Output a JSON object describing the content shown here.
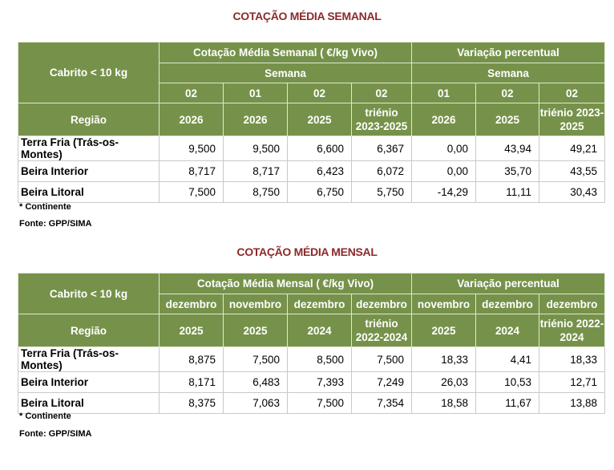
{
  "weekly": {
    "title": "COTAÇÃO MÉDIA SEMANAL",
    "corner": "Cabrito < 10 kg",
    "region_label": "Região",
    "group1": "Cotação Média Semanal ( €/kg Vivo)",
    "group2": "Variação percentual",
    "sub1": "Semana",
    "sub2": "Semana",
    "periods": [
      "02",
      "01",
      "02",
      "02",
      "01",
      "02",
      "02"
    ],
    "years": [
      "2026",
      "2026",
      "2025",
      "triénio 2023-2025",
      "2026",
      "2025",
      "triénio 2023-2025"
    ],
    "rows": [
      {
        "region": "Terra Fria (Trás-os-Montes)",
        "values": [
          "9,500",
          "9,500",
          "6,600",
          "6,367",
          "0,00",
          "43,94",
          "49,21"
        ]
      },
      {
        "region": "Beira Interior",
        "values": [
          "8,717",
          "8,717",
          "6,423",
          "6,072",
          "0,00",
          "35,70",
          "43,55"
        ]
      },
      {
        "region": "Beira Litoral",
        "values": [
          "7,500",
          "8,750",
          "6,750",
          "5,750",
          "-14,29",
          "11,11",
          "30,43"
        ]
      }
    ],
    "note": "* Continente",
    "source": "Fonte: GPP/SIMA"
  },
  "monthly": {
    "title": "COTAÇÃO MÉDIA MENSAL",
    "corner": "Cabrito < 10 kg",
    "region_label": "Região",
    "group1": "Cotação Média Mensal ( €/kg Vivo)",
    "group2": "Variação percentual",
    "periods": [
      "dezembro",
      "novembro",
      "dezembro",
      "dezembro",
      "novembro",
      "dezembro",
      "dezembro"
    ],
    "years": [
      "2025",
      "2025",
      "2024",
      "triénio 2022-2024",
      "2025",
      "2024",
      "triénio 2022-2024"
    ],
    "rows": [
      {
        "region": "Terra Fria (Trás-os-Montes)",
        "values": [
          "8,875",
          "7,500",
          "8,500",
          "7,500",
          "18,33",
          "4,41",
          "18,33"
        ]
      },
      {
        "region": "Beira Interior",
        "values": [
          "8,171",
          "6,483",
          "7,393",
          "7,249",
          "26,03",
          "10,53",
          "12,71"
        ]
      },
      {
        "region": "Beira Litoral",
        "values": [
          "8,375",
          "7,063",
          "7,500",
          "7,354",
          "18,58",
          "11,67",
          "13,88"
        ]
      }
    ],
    "note": "* Continente",
    "source": "Fonte: GPP/SIMA"
  },
  "colors": {
    "header": "#76924a",
    "title": "#8b2a2a"
  }
}
